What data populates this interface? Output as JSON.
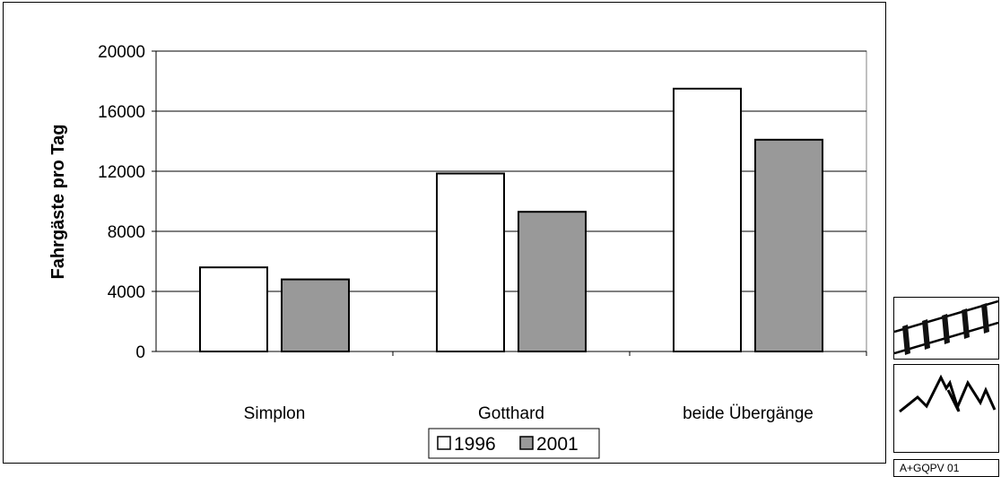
{
  "chart_data": {
    "type": "bar",
    "ylabel": "Fahrgäste pro Tag",
    "xlabel": "",
    "categories": [
      "Simplon",
      "Gotthard",
      "beide Übergänge"
    ],
    "series": [
      {
        "name": "1996",
        "values": [
          5600,
          11850,
          17500
        ],
        "color": "#ffffff"
      },
      {
        "name": "2001",
        "values": [
          4800,
          9300,
          14100
        ],
        "color": "#999999"
      }
    ],
    "ylim": [
      0,
      20000
    ],
    "yticks": [
      0,
      4000,
      8000,
      12000,
      16000,
      20000
    ],
    "grid": true,
    "legend": "bottom"
  },
  "side_panel": {
    "icons": [
      "rail-track-icon",
      "mountains-icon"
    ],
    "code": "A+GQPV 01"
  }
}
